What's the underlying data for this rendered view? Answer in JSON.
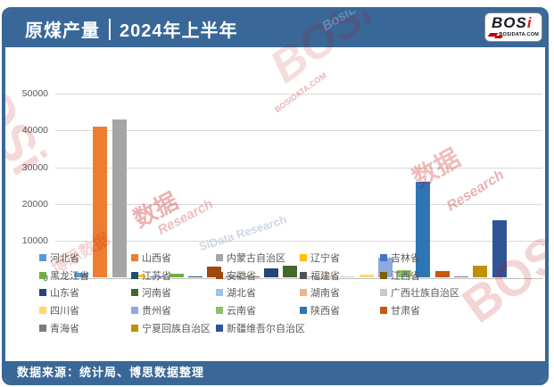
{
  "frame": {
    "accent_color": "#396898",
    "watermark_red": "#C00000"
  },
  "header": {
    "title_left": "原煤产量",
    "divider": "|",
    "title_right": "2024年上半年"
  },
  "logo": {
    "main": "BOS",
    "accent_letter": "i",
    "domain": "BOSIDATA.COM"
  },
  "chart_data": {
    "type": "bar",
    "title": "原煤产量 | 2024年上半年",
    "xlabel": "",
    "ylabel": "",
    "ylim": [
      0,
      50000
    ],
    "y_ticks": [
      0,
      10000,
      20000,
      30000,
      40000,
      50000
    ],
    "grid": true,
    "legend_position": "bottom",
    "series": [
      {
        "name": "河北省",
        "value": 1300,
        "color": "#5B9BD5"
      },
      {
        "name": "山西省",
        "value": 41000,
        "color": "#ED7D31"
      },
      {
        "name": "内蒙古自治区",
        "value": 43000,
        "color": "#A5A5A5"
      },
      {
        "name": "辽宁省",
        "value": 800,
        "color": "#FFC000"
      },
      {
        "name": "吉林省",
        "value": 350,
        "color": "#4472C4"
      },
      {
        "name": "黑龙江省",
        "value": 1200,
        "color": "#70AD47"
      },
      {
        "name": "江苏省",
        "value": 400,
        "color": "#1F4E79"
      },
      {
        "name": "安徽省",
        "value": 3100,
        "color": "#9E480E"
      },
      {
        "name": "福建省",
        "value": 250,
        "color": "#525252"
      },
      {
        "name": "江西省",
        "value": 250,
        "color": "#7F6000"
      },
      {
        "name": "山东省",
        "value": 2600,
        "color": "#264478"
      },
      {
        "name": "河南省",
        "value": 3200,
        "color": "#43682B"
      },
      {
        "name": "湖北省",
        "value": 350,
        "color": "#9DC3E6"
      },
      {
        "name": "湖南省",
        "value": 350,
        "color": "#F4B183"
      },
      {
        "name": "广西壮族自治区",
        "value": 300,
        "color": "#C9C9C9"
      },
      {
        "name": "四川省",
        "value": 800,
        "color": "#FFD966"
      },
      {
        "name": "贵州省",
        "value": 5500,
        "color": "#8FAADC"
      },
      {
        "name": "云南省",
        "value": 2100,
        "color": "#8FC069"
      },
      {
        "name": "陕西省",
        "value": 26000,
        "color": "#2E75B6"
      },
      {
        "name": "甘肃省",
        "value": 1900,
        "color": "#C45911"
      },
      {
        "name": "青海省",
        "value": 400,
        "color": "#7B7B7B"
      },
      {
        "name": "宁夏回族自治区",
        "value": 3200,
        "color": "#BF9000"
      },
      {
        "name": "新疆维吾尔自治区",
        "value": 15500,
        "color": "#2F5597"
      }
    ]
  },
  "footer": {
    "source_text": "数据来源：统计局、博思数据整理"
  },
  "watermarks": {
    "bosi": "BOSi",
    "bos": "BOS",
    "domain": "BOSIDATA.COM",
    "cn": "博思数据",
    "cn_short": "数据",
    "research_full": "BosiData Research",
    "research_part": "SiData Research",
    "research_short": "Research"
  }
}
